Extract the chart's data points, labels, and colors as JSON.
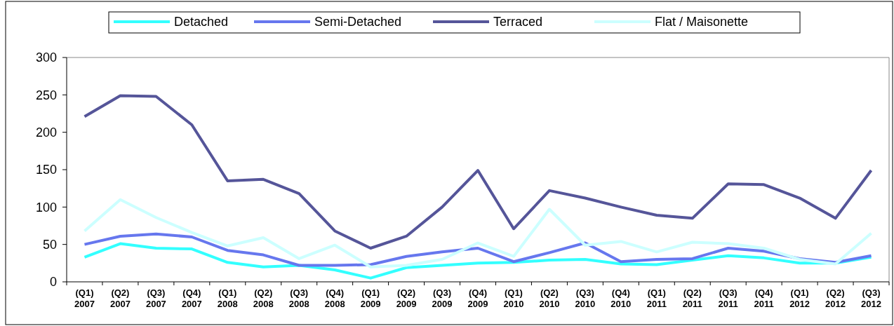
{
  "chart_data": {
    "type": "line",
    "categories": [
      "(Q1) 2007",
      "(Q2) 2007",
      "(Q3) 2007",
      "(Q4) 2007",
      "(Q1) 2008",
      "(Q2) 2008",
      "(Q3) 2008",
      "(Q4) 2008",
      "(Q1) 2009",
      "(Q2) 2009",
      "(Q3) 2009",
      "(Q4) 2009",
      "(Q1) 2010",
      "(Q2) 2010",
      "(Q3) 2010",
      "(Q4) 2010",
      "(Q1) 2011",
      "(Q2) 2011",
      "(Q3) 2011",
      "(Q4) 2011",
      "(Q1) 2012",
      "(Q2) 2012",
      "(Q3) 2012"
    ],
    "series": [
      {
        "name": "Detached",
        "color": "#33ffff",
        "values": [
          33,
          51,
          45,
          44,
          26,
          20,
          22,
          16,
          5,
          19,
          22,
          25,
          26,
          29,
          30,
          24,
          23,
          29,
          35,
          32,
          25,
          25,
          33
        ]
      },
      {
        "name": "Semi-Detached",
        "color": "#6677ee",
        "values": [
          50,
          61,
          64,
          60,
          42,
          36,
          22,
          22,
          23,
          34,
          40,
          45,
          27,
          39,
          52,
          27,
          30,
          31,
          45,
          41,
          31,
          26,
          35
        ]
      },
      {
        "name": "Terraced",
        "color": "#555599",
        "values": [
          221,
          249,
          248,
          210,
          135,
          137,
          118,
          68,
          45,
          61,
          100,
          149,
          71,
          122,
          112,
          100,
          89,
          85,
          131,
          130,
          112,
          85,
          149
        ]
      },
      {
        "name": "Flat / Maisonette",
        "color": "#ccffff",
        "values": [
          68,
          110,
          86,
          66,
          48,
          59,
          31,
          49,
          20,
          22,
          30,
          52,
          34,
          97,
          49,
          54,
          40,
          53,
          51,
          45,
          30,
          24,
          65
        ]
      }
    ],
    "ylim": [
      0,
      300
    ],
    "yticks": [
      0,
      50,
      100,
      150,
      200,
      250,
      300
    ],
    "grid": false,
    "legend": "top",
    "marker": "none",
    "line_style": "solid"
  }
}
